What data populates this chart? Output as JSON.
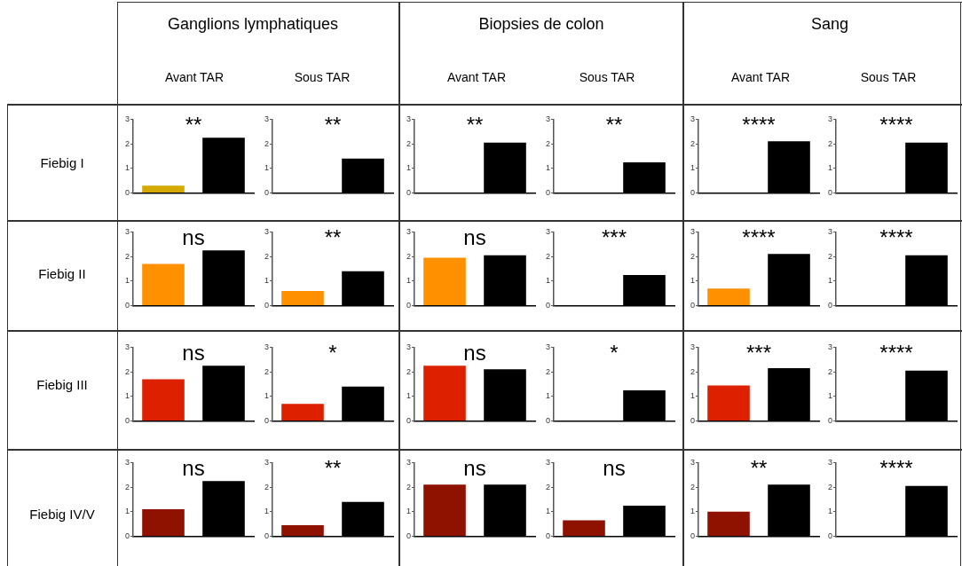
{
  "chart_data": [
    {
      "type": "other",
      "annotations": [
        "Ganglions lymphatiques",
        "Biopsies de colon",
        "Sang",
        "Avant TAR",
        "Sous TAR",
        "Avant TAR",
        "Sous TAR",
        "Avant TAR",
        "Sous TAR",
        "Fiebig I",
        "Fiebig II",
        "Fiebig III",
        "Fiebig IV/V"
      ]
    },
    {
      "type": "bar",
      "categories": [
        null,
        null
      ],
      "values": [
        0.3,
        2.25
      ],
      "colors": [
        "#d4a900",
        "#000000"
      ],
      "ylim": [
        0,
        3
      ],
      "yticks": [
        0,
        1,
        2,
        3
      ],
      "annotations": [
        "**"
      ]
    },
    {
      "type": "bar",
      "categories": [
        null,
        null
      ],
      "values": [
        0,
        1.4
      ],
      "colors": [
        "#d4a900",
        "#000000"
      ],
      "ylim": [
        0,
        3
      ],
      "yticks": [
        0,
        1,
        2,
        3
      ],
      "annotations": [
        "**"
      ]
    },
    {
      "type": "bar",
      "categories": [
        null,
        null
      ],
      "values": [
        0,
        2.05
      ],
      "colors": [
        "#d4a900",
        "#000000"
      ],
      "ylim": [
        0,
        3
      ],
      "yticks": [
        0,
        1,
        2,
        3
      ],
      "annotations": [
        "**"
      ]
    },
    {
      "type": "bar",
      "categories": [
        null,
        null
      ],
      "values": [
        0,
        1.25
      ],
      "colors": [
        "#d4a900",
        "#000000"
      ],
      "ylim": [
        0,
        3
      ],
      "yticks": [
        0,
        1,
        2,
        3
      ],
      "annotations": [
        "**"
      ]
    },
    {
      "type": "bar",
      "categories": [
        null,
        null
      ],
      "values": [
        0,
        2.1
      ],
      "colors": [
        "#d4a900",
        "#000000"
      ],
      "ylim": [
        0,
        3
      ],
      "yticks": [
        0,
        1,
        2,
        3
      ],
      "annotations": [
        "****"
      ]
    },
    {
      "type": "bar",
      "categories": [
        null,
        null
      ],
      "values": [
        0,
        2.05
      ],
      "colors": [
        "#d4a900",
        "#000000"
      ],
      "ylim": [
        0,
        3
      ],
      "yticks": [
        0,
        1,
        2,
        3
      ],
      "annotations": [
        "****"
      ]
    },
    {
      "type": "bar",
      "categories": [
        null,
        null
      ],
      "values": [
        1.7,
        2.25
      ],
      "colors": [
        "#ff9000",
        "#000000"
      ],
      "ylim": [
        0,
        3
      ],
      "yticks": [
        0,
        1,
        2,
        3
      ],
      "annotations": [
        "ns"
      ]
    },
    {
      "type": "bar",
      "categories": [
        null,
        null
      ],
      "values": [
        0.6,
        1.4
      ],
      "colors": [
        "#ff9000",
        "#000000"
      ],
      "ylim": [
        0,
        3
      ],
      "yticks": [
        0,
        1,
        2,
        3
      ],
      "annotations": [
        "**"
      ]
    },
    {
      "type": "bar",
      "categories": [
        null,
        null
      ],
      "values": [
        1.95,
        2.05
      ],
      "colors": [
        "#ff9000",
        "#000000"
      ],
      "ylim": [
        0,
        3
      ],
      "yticks": [
        0,
        1,
        2,
        3
      ],
      "annotations": [
        "ns"
      ]
    },
    {
      "type": "bar",
      "categories": [
        null,
        null
      ],
      "values": [
        0,
        1.25
      ],
      "colors": [
        "#ff9000",
        "#000000"
      ],
      "ylim": [
        0,
        3
      ],
      "yticks": [
        0,
        1,
        2,
        3
      ],
      "annotations": [
        "***"
      ]
    },
    {
      "type": "bar",
      "categories": [
        null,
        null
      ],
      "values": [
        0.7,
        2.1
      ],
      "colors": [
        "#ff9000",
        "#000000"
      ],
      "ylim": [
        0,
        3
      ],
      "yticks": [
        0,
        1,
        2,
        3
      ],
      "annotations": [
        "****"
      ]
    },
    {
      "type": "bar",
      "categories": [
        null,
        null
      ],
      "values": [
        0,
        2.05
      ],
      "colors": [
        "#ff9000",
        "#000000"
      ],
      "ylim": [
        0,
        3
      ],
      "yticks": [
        0,
        1,
        2,
        3
      ],
      "annotations": [
        "****"
      ]
    },
    {
      "type": "bar",
      "categories": [
        null,
        null
      ],
      "values": [
        1.7,
        2.25
      ],
      "colors": [
        "#dd2000",
        "#000000"
      ],
      "ylim": [
        0,
        3
      ],
      "yticks": [
        0,
        1,
        2,
        3
      ],
      "annotations": [
        "ns"
      ]
    },
    {
      "type": "bar",
      "categories": [
        null,
        null
      ],
      "values": [
        0.7,
        1.4
      ],
      "colors": [
        "#dd2000",
        "#000000"
      ],
      "ylim": [
        0,
        3
      ],
      "yticks": [
        0,
        1,
        2,
        3
      ],
      "annotations": [
        "*"
      ]
    },
    {
      "type": "bar",
      "categories": [
        null,
        null
      ],
      "values": [
        2.25,
        2.1
      ],
      "colors": [
        "#dd2000",
        "#000000"
      ],
      "ylim": [
        0,
        3
      ],
      "yticks": [
        0,
        1,
        2,
        3
      ],
      "annotations": [
        "ns"
      ]
    },
    {
      "type": "bar",
      "categories": [
        null,
        null
      ],
      "values": [
        0,
        1.25
      ],
      "colors": [
        "#dd2000",
        "#000000"
      ],
      "ylim": [
        0,
        3
      ],
      "yticks": [
        0,
        1,
        2,
        3
      ],
      "annotations": [
        "*"
      ]
    },
    {
      "type": "bar",
      "categories": [
        null,
        null
      ],
      "values": [
        1.45,
        2.15
      ],
      "colors": [
        "#dd2000",
        "#000000"
      ],
      "ylim": [
        0,
        3
      ],
      "yticks": [
        0,
        1,
        2,
        3
      ],
      "annotations": [
        "***"
      ]
    },
    {
      "type": "bar",
      "categories": [
        null,
        null
      ],
      "values": [
        0,
        2.05
      ],
      "colors": [
        "#dd2000",
        "#000000"
      ],
      "ylim": [
        0,
        3
      ],
      "yticks": [
        0,
        1,
        2,
        3
      ],
      "annotations": [
        "****"
      ]
    },
    {
      "type": "bar",
      "categories": [
        null,
        null
      ],
      "values": [
        1.1,
        2.25
      ],
      "colors": [
        "#8f1100",
        "#000000"
      ],
      "ylim": [
        0,
        3
      ],
      "yticks": [
        0,
        1,
        2,
        3
      ],
      "annotations": [
        "ns"
      ]
    },
    {
      "type": "bar",
      "categories": [
        null,
        null
      ],
      "values": [
        0.45,
        1.4
      ],
      "colors": [
        "#8f1100",
        "#000000"
      ],
      "ylim": [
        0,
        3
      ],
      "yticks": [
        0,
        1,
        2,
        3
      ],
      "annotations": [
        "**"
      ]
    },
    {
      "type": "bar",
      "categories": [
        null,
        null
      ],
      "values": [
        2.1,
        2.1
      ],
      "colors": [
        "#8f1100",
        "#000000"
      ],
      "ylim": [
        0,
        3
      ],
      "yticks": [
        0,
        1,
        2,
        3
      ],
      "annotations": [
        "ns"
      ]
    },
    {
      "type": "bar",
      "categories": [
        null,
        null
      ],
      "values": [
        0.65,
        1.25
      ],
      "colors": [
        "#8f1100",
        "#000000"
      ],
      "ylim": [
        0,
        3
      ],
      "yticks": [
        0,
        1,
        2,
        3
      ],
      "annotations": [
        "ns"
      ]
    },
    {
      "type": "bar",
      "categories": [
        null,
        null
      ],
      "values": [
        1.0,
        2.1
      ],
      "colors": [
        "#8f1100",
        "#000000"
      ],
      "ylim": [
        0,
        3
      ],
      "yticks": [
        0,
        1,
        2,
        3
      ],
      "annotations": [
        "**"
      ]
    },
    {
      "type": "bar",
      "categories": [
        null,
        null
      ],
      "values": [
        0,
        2.05
      ],
      "colors": [
        "#8f1100",
        "#000000"
      ],
      "ylim": [
        0,
        3
      ],
      "yticks": [
        0,
        1,
        2,
        3
      ],
      "annotations": [
        "****"
      ]
    }
  ]
}
